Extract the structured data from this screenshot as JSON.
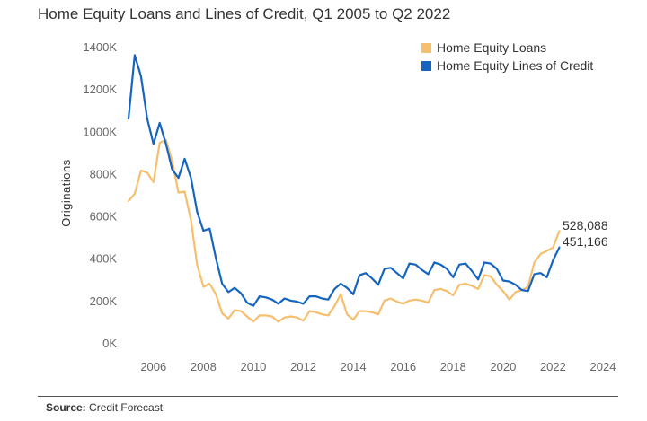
{
  "chart_data": {
    "type": "line",
    "title": "Home Equity Loans and Lines of Credit, Q1 2005 to Q2 2022",
    "xlabel": "",
    "ylabel": "Originations",
    "xlim": [
      2005,
      2024
    ],
    "ylim": [
      0,
      1400000
    ],
    "x_ticks": [
      2006,
      2008,
      2010,
      2012,
      2014,
      2016,
      2018,
      2020,
      2022,
      2024
    ],
    "x_tick_labels": [
      "2006",
      "2008",
      "2010",
      "2012",
      "2014",
      "2016",
      "2018",
      "2020",
      "2022",
      "2024"
    ],
    "y_ticks": [
      0,
      200000,
      400000,
      600000,
      800000,
      1000000,
      1200000,
      1400000
    ],
    "y_tick_labels": [
      "0K",
      "200K",
      "400K",
      "600K",
      "800K",
      "1000K",
      "1200K",
      "1400K"
    ],
    "grid": false,
    "legend_position": "top-right",
    "x": [
      2005.0,
      2005.25,
      2005.5,
      2005.75,
      2006.0,
      2006.25,
      2006.5,
      2006.75,
      2007.0,
      2007.25,
      2007.5,
      2007.75,
      2008.0,
      2008.25,
      2008.5,
      2008.75,
      2009.0,
      2009.25,
      2009.5,
      2009.75,
      2010.0,
      2010.25,
      2010.5,
      2010.75,
      2011.0,
      2011.25,
      2011.5,
      2011.75,
      2012.0,
      2012.25,
      2012.5,
      2012.75,
      2013.0,
      2013.25,
      2013.5,
      2013.75,
      2014.0,
      2014.25,
      2014.5,
      2014.75,
      2015.0,
      2015.25,
      2015.5,
      2015.75,
      2016.0,
      2016.25,
      2016.5,
      2016.75,
      2017.0,
      2017.25,
      2017.5,
      2017.75,
      2018.0,
      2018.25,
      2018.5,
      2018.75,
      2019.0,
      2019.25,
      2019.5,
      2019.75,
      2020.0,
      2020.25,
      2020.5,
      2020.75,
      2021.0,
      2021.25,
      2021.5,
      2021.75,
      2022.0,
      2022.25
    ],
    "series": [
      {
        "name": "Home Equity Loans",
        "color": "#F6BE6D",
        "values": [
          670000,
          705000,
          815000,
          805000,
          760000,
          945000,
          960000,
          860000,
          710000,
          715000,
          580000,
          370000,
          265000,
          280000,
          230000,
          140000,
          115000,
          155000,
          150000,
          125000,
          100000,
          130000,
          130000,
          125000,
          100000,
          120000,
          125000,
          120000,
          105000,
          150000,
          145000,
          135000,
          130000,
          175000,
          230000,
          135000,
          110000,
          150000,
          150000,
          145000,
          135000,
          200000,
          210000,
          195000,
          185000,
          200000,
          205000,
          200000,
          190000,
          250000,
          255000,
          245000,
          225000,
          275000,
          280000,
          270000,
          255000,
          320000,
          315000,
          275000,
          245000,
          205000,
          240000,
          250000,
          265000,
          380000,
          420000,
          435000,
          450000,
          528088
        ]
      },
      {
        "name": "Home Equity Lines of Credit",
        "color": "#1565C0",
        "values": [
          1060000,
          1360000,
          1260000,
          1060000,
          940000,
          1040000,
          940000,
          820000,
          780000,
          870000,
          780000,
          620000,
          530000,
          540000,
          400000,
          280000,
          240000,
          260000,
          235000,
          190000,
          175000,
          220000,
          215000,
          205000,
          185000,
          210000,
          200000,
          195000,
          185000,
          220000,
          220000,
          210000,
          205000,
          255000,
          280000,
          260000,
          230000,
          320000,
          330000,
          305000,
          275000,
          350000,
          355000,
          330000,
          305000,
          375000,
          370000,
          345000,
          325000,
          380000,
          370000,
          350000,
          310000,
          370000,
          375000,
          340000,
          300000,
          380000,
          375000,
          350000,
          295000,
          290000,
          275000,
          250000,
          245000,
          325000,
          330000,
          310000,
          390000,
          451166
        ]
      }
    ],
    "annotations": [
      "528,088",
      "451,166"
    ]
  },
  "footer": {
    "source_label": "Source:",
    "source_text": "Credit Forecast"
  }
}
